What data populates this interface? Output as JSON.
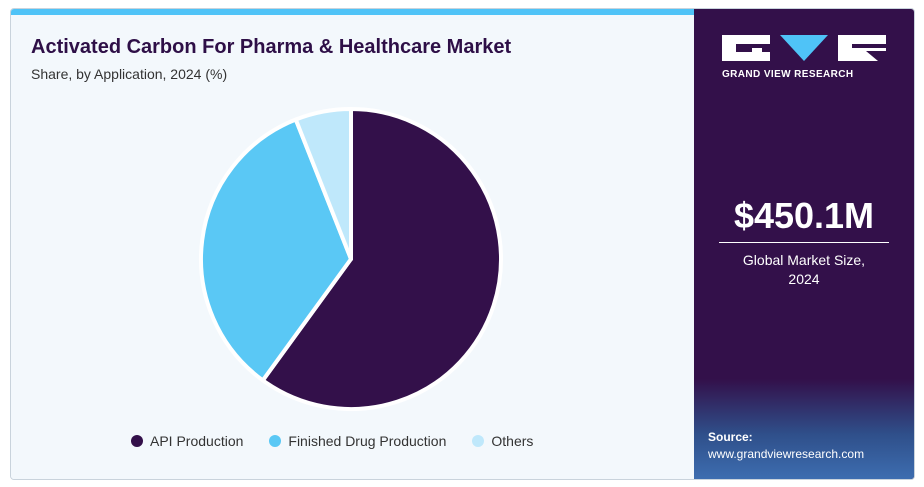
{
  "header": {
    "title": "Activated Carbon For Pharma & Healthcare Market",
    "subtitle": "Share, by Application, 2024 (%)"
  },
  "chart_data": {
    "type": "pie",
    "title": "Activated Carbon For Pharma & Healthcare Market",
    "subtitle": "Share, by Application, 2024 (%)",
    "categories": [
      "API Production",
      "Finished Drug Production",
      "Others"
    ],
    "values": [
      60,
      34,
      6
    ],
    "colors": [
      "#33104a",
      "#5ac8f5",
      "#bfe8fb"
    ],
    "legend_position": "bottom"
  },
  "legend": {
    "items": [
      {
        "label": "API Production",
        "color": "#33104a"
      },
      {
        "label": "Finished Drug Production",
        "color": "#5ac8f5"
      },
      {
        "label": "Others",
        "color": "#bfe8fb"
      }
    ]
  },
  "sidebar": {
    "logo_caption": "GRAND VIEW RESEARCH",
    "market_value": "$450.1M",
    "market_label_line1": "Global Market Size,",
    "market_label_line2": "2024",
    "source_label": "Source:",
    "source_url": "www.grandviewresearch.com"
  },
  "colors": {
    "brand_dark": "#33104a",
    "accent": "#4fc3f7"
  }
}
